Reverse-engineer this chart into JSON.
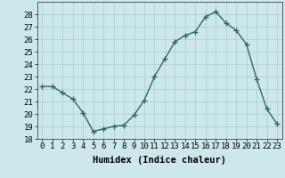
{
  "x": [
    0,
    1,
    2,
    3,
    4,
    5,
    6,
    7,
    8,
    9,
    10,
    11,
    12,
    13,
    14,
    15,
    16,
    17,
    18,
    19,
    20,
    21,
    22,
    23
  ],
  "y": [
    22.2,
    22.2,
    21.7,
    21.2,
    20.1,
    18.6,
    18.8,
    19.0,
    19.1,
    19.9,
    21.1,
    23.0,
    24.4,
    25.8,
    26.3,
    26.6,
    27.8,
    28.2,
    27.3,
    26.7,
    25.6,
    22.8,
    20.4,
    19.2
  ],
  "line_color": "#2e6b5e",
  "marker": "+",
  "marker_size": 4,
  "marker_lw": 1.0,
  "line_width": 1.0,
  "bg_color": "#cce8ea",
  "grid_color": "#aacccc",
  "xlabel": "Humidex (Indice chaleur)",
  "ylim": [
    18,
    29
  ],
  "xlim": [
    -0.5,
    23.5
  ],
  "yticks": [
    18,
    19,
    20,
    21,
    22,
    23,
    24,
    25,
    26,
    27,
    28
  ],
  "xtick_labels": [
    "0",
    "1",
    "2",
    "3",
    "4",
    "5",
    "6",
    "7",
    "8",
    "9",
    "10",
    "11",
    "12",
    "13",
    "14",
    "15",
    "16",
    "17",
    "18",
    "19",
    "20",
    "21",
    "22",
    "23"
  ],
  "xlabel_fontsize": 7.5,
  "tick_fontsize": 6.5
}
